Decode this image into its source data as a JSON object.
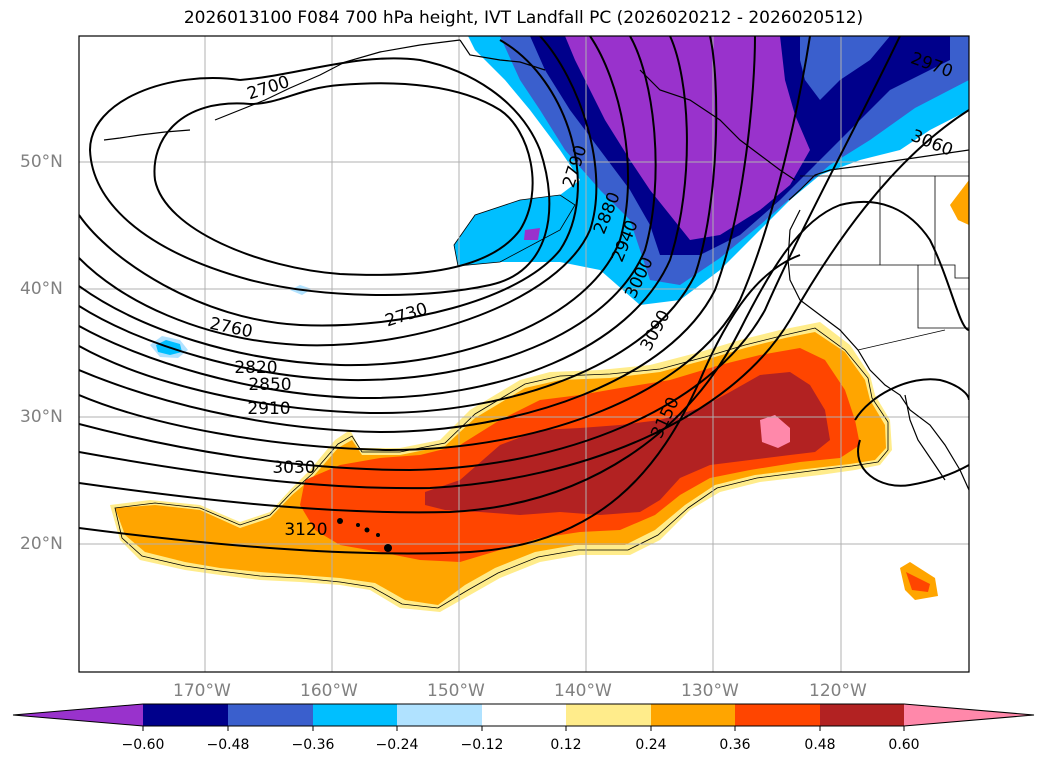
{
  "title": "2026013100 F084 700 hPa height, IVT Landfall PC (2026020212 - 2026020512)",
  "lat_labels": [
    "50°N",
    "40°N",
    "30°N",
    "20°N"
  ],
  "lon_labels": [
    "170°W",
    "160°W",
    "150°W",
    "140°W",
    "130°W",
    "120°W"
  ],
  "contour_labels": [
    "2700",
    "2730",
    "2760",
    "2790",
    "2820",
    "2850",
    "2880",
    "2910",
    "2940",
    "2970",
    "3000",
    "3030",
    "3060",
    "3090",
    "3120",
    "3150"
  ],
  "colorbar": {
    "ticks": [
      "−0.60",
      "−0.48",
      "−0.36",
      "−0.24",
      "−0.12",
      "0.12",
      "0.24",
      "0.36",
      "0.48",
      "0.60"
    ],
    "colors": [
      "#9932cc",
      "#00008b",
      "#3a5fcd",
      "#00bfff",
      "#b0e2ff",
      "#ffffff",
      "#ffec8b",
      "#ffa500",
      "#ff4500",
      "#b22222",
      "#ff88aa"
    ]
  }
}
